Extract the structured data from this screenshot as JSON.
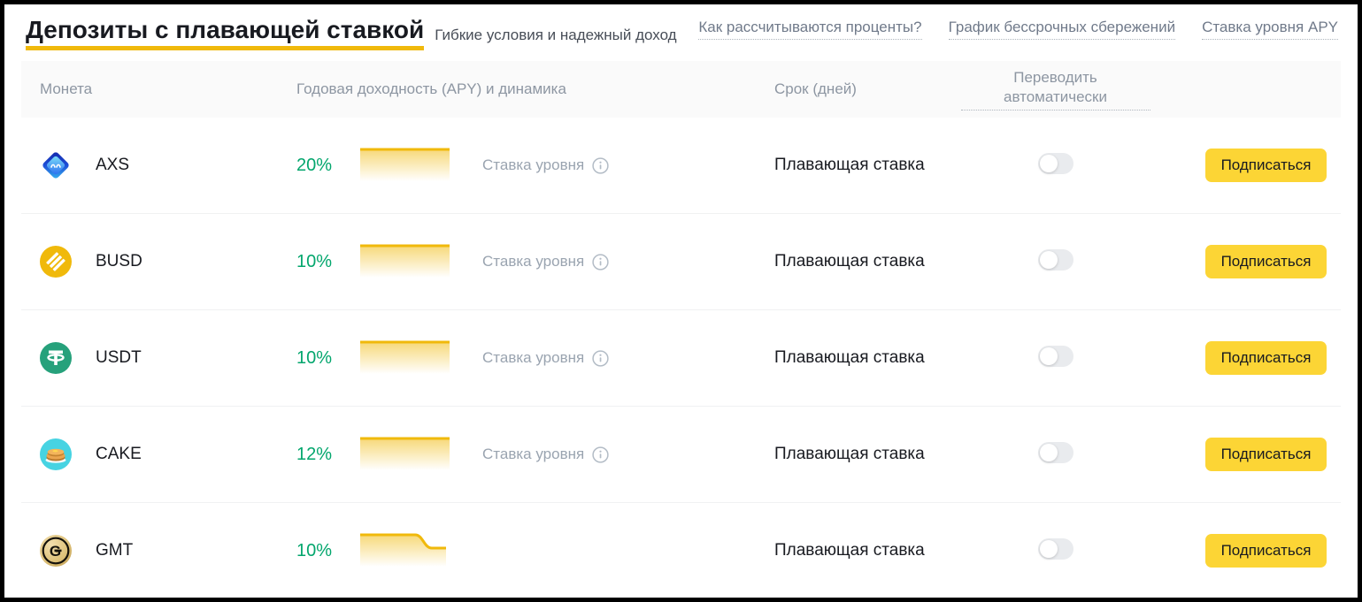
{
  "page": {
    "title": "Депозиты с плавающей ставкой",
    "subtitle": "Гибкие условия и надежный доход",
    "links": [
      "Как рассчитываются проценты?",
      "График бессрочных сбережений",
      "Ставка уровня APY"
    ]
  },
  "table": {
    "headers": {
      "coin": "Монета",
      "apy": "Годовая доходность (APY) и динамика",
      "term": "Срок (дней)",
      "auto_transfer": "Переводить автоматически"
    },
    "rows": [
      {
        "coin": "AXS",
        "icon": "axs-coin-icon",
        "apy": "20%",
        "trend": "flat",
        "level_label": "Ставка уровня",
        "term": "Плавающая ставка",
        "toggle_on": false,
        "button": "Подписаться"
      },
      {
        "coin": "BUSD",
        "icon": "busd-coin-icon",
        "apy": "10%",
        "trend": "flat",
        "level_label": "Ставка уровня",
        "term": "Плавающая ставка",
        "toggle_on": false,
        "button": "Подписаться"
      },
      {
        "coin": "USDT",
        "icon": "usdt-coin-icon",
        "apy": "10%",
        "trend": "flat",
        "level_label": "Ставка уровня",
        "term": "Плавающая ставка",
        "toggle_on": false,
        "button": "Подписаться"
      },
      {
        "coin": "CAKE",
        "icon": "cake-coin-icon",
        "apy": "12%",
        "trend": "flat",
        "level_label": "Ставка уровня",
        "term": "Плавающая ставка",
        "toggle_on": false,
        "button": "Подписаться"
      },
      {
        "coin": "GMT",
        "icon": "gmt-coin-icon",
        "apy": "10%",
        "trend": "step-down",
        "level_label": null,
        "term": "Плавающая ставка",
        "toggle_on": false,
        "button": "Подписаться"
      }
    ]
  },
  "colors": {
    "accent_yellow": "#F0B90B",
    "button_yellow": "#FCD535",
    "apy_green": "#03A66D",
    "header_text": "#8D96A2",
    "muted_text": "#9AA4B0",
    "link_text": "#707A8A",
    "body_text": "#181A20",
    "header_bg": "#FAFAFA",
    "separator": "#F0F1F2"
  }
}
